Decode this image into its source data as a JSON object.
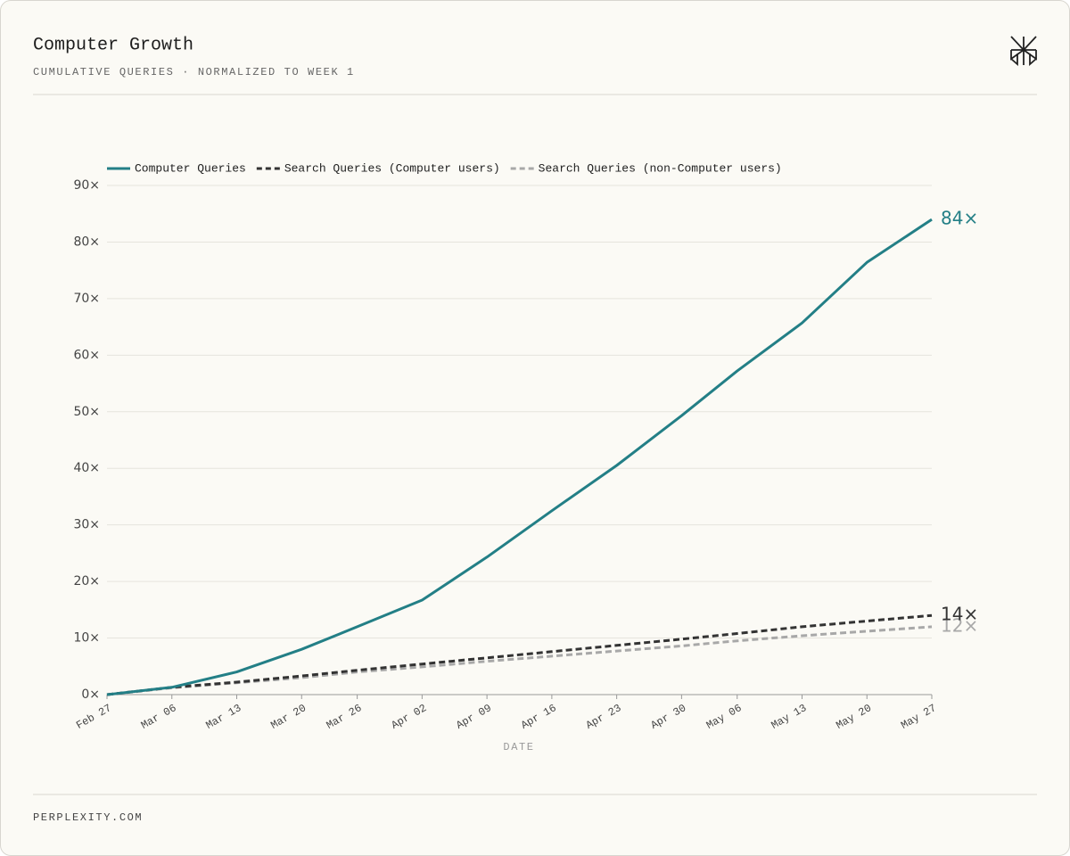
{
  "header": {
    "title": "Computer Growth",
    "subtitle": "CUMULATIVE QUERIES · NORMALIZED TO WEEK 1"
  },
  "footer": {
    "text": "PERPLEXITY.COM"
  },
  "chart_data": {
    "type": "line",
    "x_label": "DATE",
    "x": [
      "Feb 27",
      "Mar 06",
      "Mar 13",
      "Mar 20",
      "Mar 26",
      "Apr 02",
      "Apr 09",
      "Apr 16",
      "Apr 23",
      "Apr 30",
      "May 06",
      "May 13",
      "May 20",
      "May 27"
    ],
    "xlim": [
      "Feb 27",
      "May 27"
    ],
    "xticks": [
      "Feb 27",
      "Mar 06",
      "Mar 13",
      "Mar 20",
      "Mar 26",
      "Apr 02",
      "Apr 09",
      "Apr 16",
      "Apr 23",
      "Apr 30",
      "May 06",
      "May 13",
      "May 20",
      "May 27"
    ],
    "ylim": [
      0,
      90
    ],
    "yticks": [
      {
        "value": 0,
        "label": "0×"
      },
      {
        "value": 10,
        "label": "10×"
      },
      {
        "value": 20,
        "label": "20×"
      },
      {
        "value": 30,
        "label": "30×"
      },
      {
        "value": 40,
        "label": "40×"
      },
      {
        "value": 50,
        "label": "50×"
      },
      {
        "value": 60,
        "label": "60×"
      },
      {
        "value": 70,
        "label": "70×"
      },
      {
        "value": 80,
        "label": "80×"
      },
      {
        "value": 90,
        "label": "90×"
      }
    ],
    "grid": true,
    "legend": "top-left",
    "series": [
      {
        "name": "Computer Queries",
        "color": "#237f86",
        "dash": "solid",
        "end_label": "84×",
        "values": [
          0,
          1.3,
          4,
          8,
          12,
          16.7,
          24.3,
          32.5,
          40.5,
          49.3,
          57.2,
          65.7,
          76.4,
          84
        ]
      },
      {
        "name": "Search Queries (Computer users)",
        "color": "#333333",
        "dash": "dashed",
        "end_label": "14×",
        "values": [
          0,
          1.3,
          2.2,
          3.3,
          4.3,
          5.4,
          6.5,
          7.6,
          8.7,
          9.8,
          10.8,
          12,
          13,
          14
        ]
      },
      {
        "name": "Search Queries (non-Computer users)",
        "color": "#a8a8a8",
        "dash": "dashed",
        "end_label": "12×",
        "values": [
          0,
          1.2,
          2.1,
          3,
          4,
          4.9,
          5.9,
          6.8,
          7.7,
          8.6,
          9.5,
          10.4,
          11.2,
          12
        ]
      }
    ]
  }
}
